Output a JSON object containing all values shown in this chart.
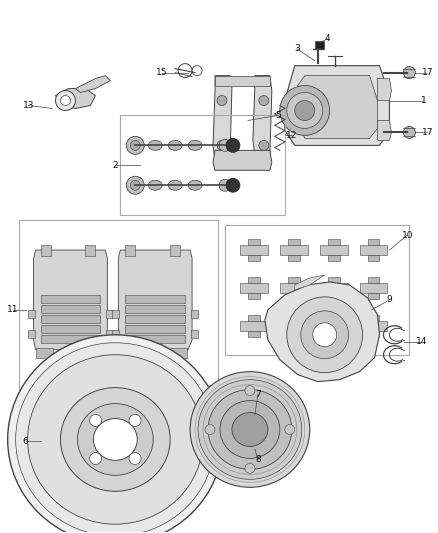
{
  "background_color": "#ffffff",
  "fig_width": 4.38,
  "fig_height": 5.33,
  "dpi": 100,
  "outline_color": "#444444",
  "light_gray": "#cccccc",
  "mid_gray": "#999999",
  "dark_gray": "#666666",
  "box_color": "#888888"
}
